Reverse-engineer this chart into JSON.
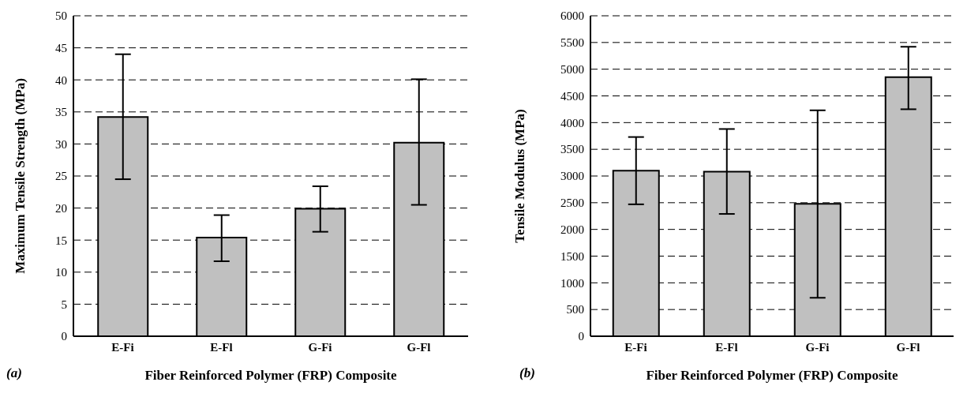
{
  "chart_data": [
    {
      "type": "bar",
      "categories": [
        "E-Fi",
        "E-Fl",
        "G-Fi",
        "G-Fl"
      ],
      "values": [
        34.2,
        15.4,
        19.9,
        30.2
      ],
      "errors": [
        [
          24.5,
          44
        ],
        [
          11.7,
          18.9
        ],
        [
          16.3,
          23.4
        ],
        [
          20.5,
          40.1
        ]
      ],
      "color": "#c0c0c0",
      "ylabel": "Maximum  Tensile Strength (MPa)",
      "xlabel": "Fiber Reinforced Polymer (FRP) Composite",
      "annotations": [
        "(a)"
      ],
      "ylim": [
        0,
        50
      ],
      "yticks": [
        0,
        5,
        10,
        15,
        20,
        25,
        30,
        35,
        40,
        45,
        50
      ],
      "grid": "y",
      "legend": false
    },
    {
      "type": "bar",
      "categories": [
        "E-Fi",
        "E-Fl",
        "G-Fi",
        "G-Fl"
      ],
      "values": [
        3100,
        3080,
        2480,
        4850
      ],
      "errors": [
        [
          2470,
          3730
        ],
        [
          2290,
          3880
        ],
        [
          720,
          4230
        ],
        [
          4250,
          5420
        ]
      ],
      "color": "#c0c0c0",
      "ylabel": "Tensile Modulus (MPa)",
      "xlabel": "Fiber Reinforced Polymer (FRP) Composite",
      "annotations": [
        "(b)"
      ],
      "ylim": [
        0,
        6000
      ],
      "yticks": [
        0,
        500,
        1000,
        1500,
        2000,
        2500,
        3000,
        3500,
        4000,
        4500,
        5000,
        5500,
        6000
      ],
      "grid": "y",
      "legend": false
    }
  ]
}
